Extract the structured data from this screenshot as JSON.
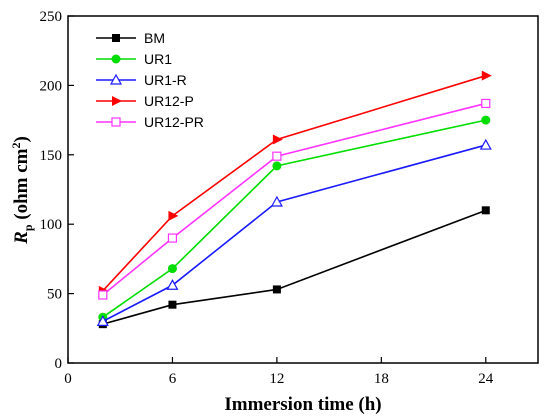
{
  "chart_data": {
    "type": "line",
    "xlabel": "Immersion time (h)",
    "ylabel": {
      "symbol": "R",
      "subscript": "p",
      "unit": " (ohm cm",
      "superscript": "2",
      "close": ")"
    },
    "xlim": [
      0,
      27
    ],
    "ylim": [
      0,
      250
    ],
    "xticks": [
      0,
      6,
      12,
      18,
      24
    ],
    "yticks": [
      0,
      50,
      100,
      150,
      200,
      250
    ],
    "grid": false,
    "legend_position": "top-left",
    "series": [
      {
        "name": "BM",
        "color": "#000000",
        "marker": "square-filled",
        "x": [
          2,
          6,
          12,
          24
        ],
        "y": [
          28,
          42,
          53,
          110
        ]
      },
      {
        "name": "UR1",
        "color": "#00dd00",
        "marker": "circle-filled",
        "x": [
          2,
          6,
          12,
          24
        ],
        "y": [
          33,
          68,
          142,
          175
        ]
      },
      {
        "name": "UR1-R",
        "color": "#1a1aff",
        "marker": "triangle-open",
        "x": [
          2,
          6,
          12,
          24
        ],
        "y": [
          30,
          56,
          116,
          157
        ]
      },
      {
        "name": "UR12-P",
        "color": "#ff0000",
        "marker": "triangle-right-filled",
        "x": [
          2,
          6,
          12,
          24
        ],
        "y": [
          52,
          106,
          161,
          207
        ]
      },
      {
        "name": "UR12-PR",
        "color": "#ff33ff",
        "marker": "square-open",
        "x": [
          2,
          6,
          12,
          24
        ],
        "y": [
          49,
          90,
          149,
          187
        ]
      }
    ]
  }
}
